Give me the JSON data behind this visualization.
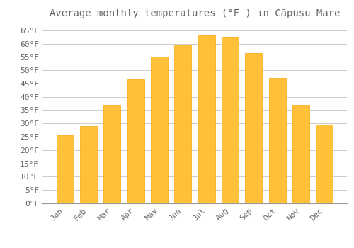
{
  "title": "Average monthly temperatures (°F ) in Căpuşu Mare",
  "months": [
    "Jan",
    "Feb",
    "Mar",
    "Apr",
    "May",
    "Jun",
    "Jul",
    "Aug",
    "Sep",
    "Oct",
    "Nov",
    "Dec"
  ],
  "values": [
    25.5,
    29.0,
    37.0,
    46.5,
    55.0,
    59.5,
    63.0,
    62.5,
    56.5,
    47.0,
    37.0,
    29.5
  ],
  "bar_color": "#FFC03A",
  "bar_edge_color": "#FFA500",
  "background_color": "#FFFFFF",
  "grid_color": "#CCCCCC",
  "text_color": "#666666",
  "ylim": [
    0,
    68
  ],
  "yticks": [
    0,
    5,
    10,
    15,
    20,
    25,
    30,
    35,
    40,
    45,
    50,
    55,
    60,
    65
  ],
  "title_fontsize": 10,
  "tick_fontsize": 8,
  "font_family": "monospace"
}
